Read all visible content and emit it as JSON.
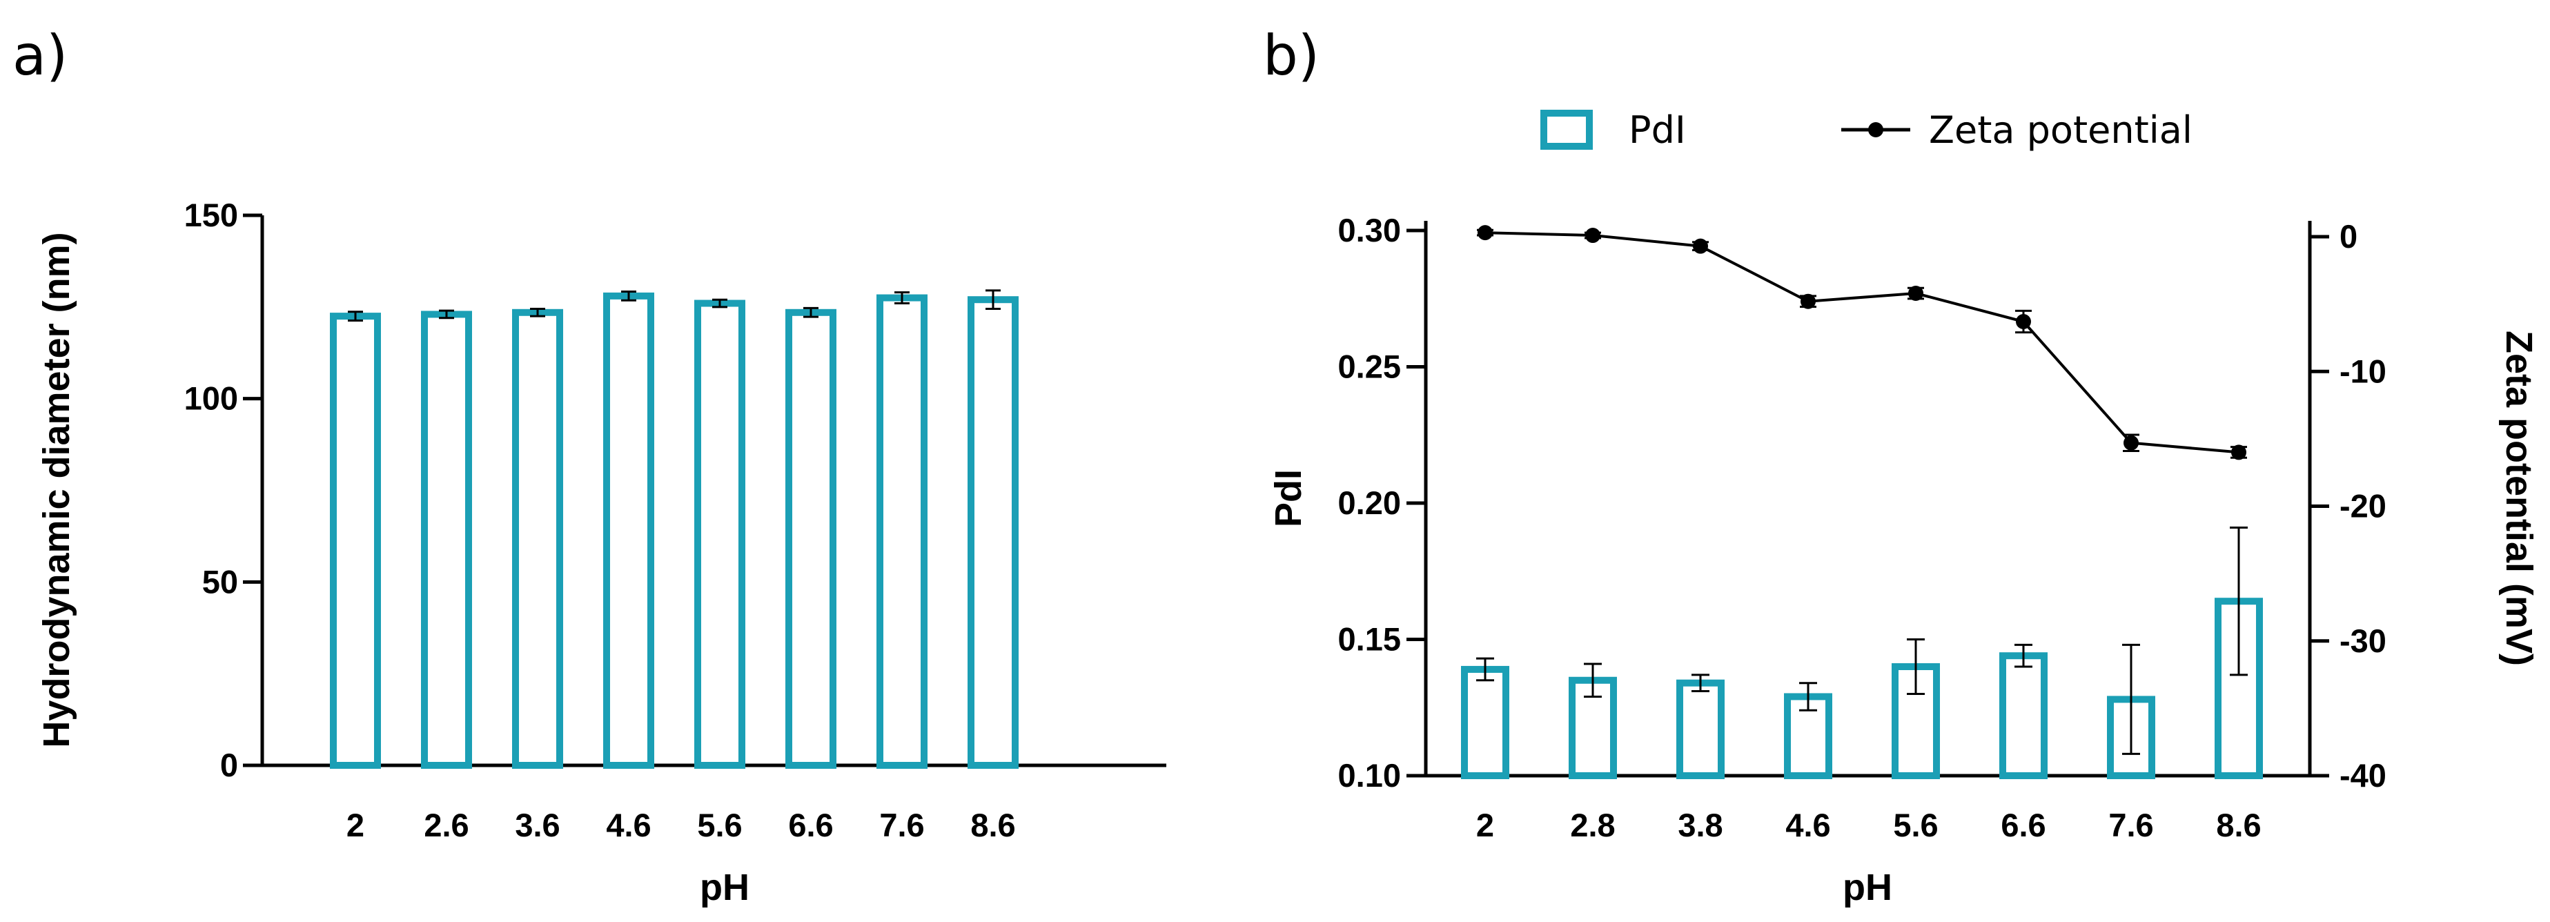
{
  "chart_data": [
    {
      "panel": "a)",
      "type": "bar",
      "categories": [
        "2",
        "2.6",
        "3.6",
        "4.6",
        "5.6",
        "6.6",
        "7.6",
        "8.6"
      ],
      "values": [
        122.5,
        123,
        123.5,
        128,
        126,
        123.5,
        127.5,
        127
      ],
      "errors": [
        1.2,
        1,
        1,
        1.2,
        1,
        1.2,
        1.5,
        2.5
      ],
      "xlabel": "pH",
      "ylabel": "Hydrodynamic diameter (nm)",
      "ylim": [
        0,
        150
      ],
      "yticks": [
        0,
        50,
        100,
        150
      ],
      "bar_color": "#1b9fb5"
    },
    {
      "panel": "b)",
      "type": "bar+line",
      "categories": [
        "2",
        "2.8",
        "3.8",
        "4.6",
        "5.6",
        "6.6",
        "7.6",
        "8.6"
      ],
      "series": [
        {
          "name": "PdI",
          "type": "bar",
          "axis": "left",
          "values": [
            0.139,
            0.135,
            0.134,
            0.129,
            0.14,
            0.144,
            0.128,
            0.164
          ],
          "errors": [
            0.004,
            0.006,
            0.003,
            0.005,
            0.01,
            0.004,
            0.02,
            0.027
          ],
          "color": "#1b9fb5"
        },
        {
          "name": "Zeta potential",
          "type": "line",
          "axis": "right",
          "values": [
            0.3,
            0.1,
            -0.7,
            -4.8,
            -4.2,
            -6.3,
            -15.3,
            -16
          ],
          "errors": [
            0.2,
            0.2,
            0.3,
            0.4,
            0.4,
            0.8,
            0.6,
            0.4
          ],
          "color": "#000000"
        }
      ],
      "xlabel": "pH",
      "ylabel_left": "PdI",
      "ylabel_right": "Zeta potential (mV)",
      "ylim_left": [
        0.1,
        0.3
      ],
      "yticks_left": [
        "0.10",
        "0.15",
        "0.20",
        "0.25",
        "0.30"
      ],
      "ylim_right": [
        -40,
        0
      ],
      "yticks_right": [
        "0",
        "-10",
        "-20",
        "-30",
        "-40"
      ],
      "legend": [
        "PdI",
        "Zeta potential"
      ]
    }
  ]
}
